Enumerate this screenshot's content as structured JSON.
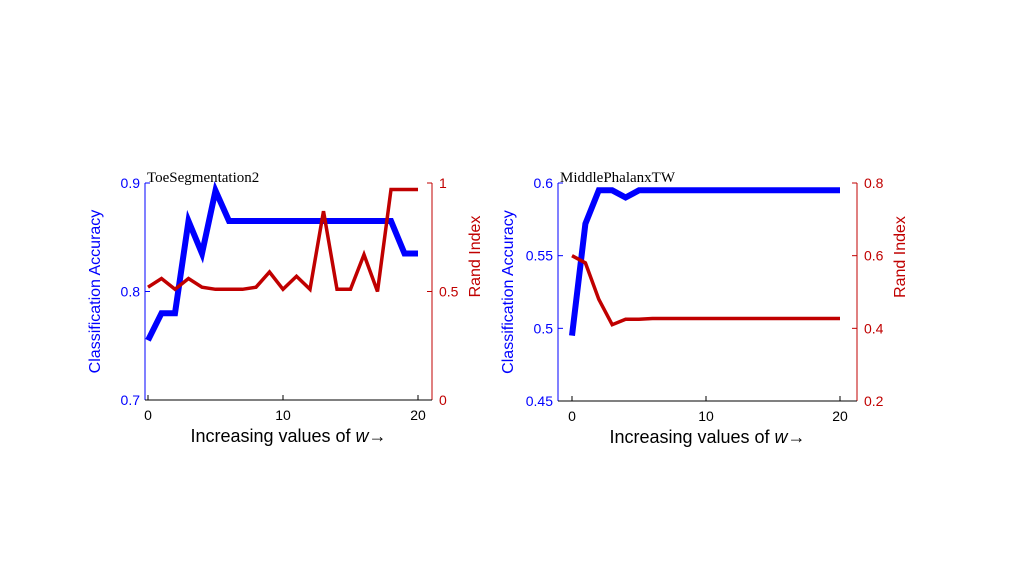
{
  "colors": {
    "left_axis": "#0000ff",
    "right_axis": "#c00000",
    "axis_line": "#000000",
    "background": "#ffffff"
  },
  "chart_data": [
    {
      "type": "line",
      "title": "ToeSegmentation2",
      "xlabel": "Increasing values of ",
      "xlabel_var": "w",
      "xlabel_arrow": "→",
      "ylabel_left": "Classification Accuracy",
      "ylabel_right": "Rand Index",
      "xlim": [
        -1,
        20
      ],
      "ylim_left": [
        0.7,
        0.9
      ],
      "ylim_right": [
        0,
        1
      ],
      "xticks": [
        0,
        10,
        20
      ],
      "xtick_labels": [
        "0",
        "10",
        "20"
      ],
      "yticks_left": [
        0.7,
        0.8,
        0.9
      ],
      "ytick_labels_left": [
        "0.7",
        "0.8",
        "0.9"
      ],
      "yticks_right": [
        0,
        0.5,
        1
      ],
      "ytick_labels_right": [
        "0",
        "0.5",
        "1"
      ],
      "grid": false,
      "series": [
        {
          "axis": "left",
          "x": [
            0,
            1,
            2,
            3,
            4,
            5,
            6,
            7,
            8,
            9,
            10,
            11,
            12,
            13,
            14,
            15,
            16,
            17,
            18,
            19,
            20
          ],
          "values": [
            0.755,
            0.78,
            0.78,
            0.865,
            0.835,
            0.893,
            0.865,
            0.865,
            0.865,
            0.865,
            0.865,
            0.865,
            0.865,
            0.865,
            0.865,
            0.865,
            0.865,
            0.865,
            0.865,
            0.835,
            0.835
          ]
        },
        {
          "axis": "right",
          "x": [
            0,
            1,
            2,
            3,
            4,
            5,
            6,
            7,
            8,
            9,
            10,
            11,
            12,
            13,
            14,
            15,
            16,
            17,
            18,
            19,
            20
          ],
          "values": [
            0.52,
            0.56,
            0.51,
            0.56,
            0.52,
            0.51,
            0.51,
            0.51,
            0.52,
            0.59,
            0.51,
            0.57,
            0.51,
            0.87,
            0.51,
            0.51,
            0.67,
            0.5,
            0.97,
            0.97,
            0.97
          ]
        }
      ]
    },
    {
      "type": "line",
      "title": "MiddlePhalanxTW",
      "xlabel": "Increasing values of ",
      "xlabel_var": "w",
      "xlabel_arrow": "→",
      "ylabel_left": "Classification Accuracy",
      "ylabel_right": "Rand Index",
      "xlim": [
        -1,
        20
      ],
      "ylim_left": [
        0.45,
        0.6
      ],
      "ylim_right": [
        0.2,
        0.8
      ],
      "xticks": [
        0,
        10,
        20
      ],
      "xtick_labels": [
        "0",
        "10",
        "20"
      ],
      "yticks_left": [
        0.45,
        0.5,
        0.55,
        0.6
      ],
      "ytick_labels_left": [
        "0.45",
        "0.5",
        "0.55",
        "0.6"
      ],
      "yticks_right": [
        0.2,
        0.4,
        0.6,
        0.8
      ],
      "ytick_labels_right": [
        "0.2",
        "0.4",
        "0.6",
        "0.8"
      ],
      "grid": false,
      "series": [
        {
          "axis": "left",
          "x": [
            0,
            1,
            2,
            3,
            4,
            5,
            6,
            7,
            8,
            9,
            10,
            11,
            12,
            13,
            14,
            15,
            16,
            17,
            18,
            19,
            20
          ],
          "values": [
            0.495,
            0.572,
            0.595,
            0.595,
            0.59,
            0.595,
            0.595,
            0.595,
            0.595,
            0.595,
            0.595,
            0.595,
            0.595,
            0.595,
            0.595,
            0.595,
            0.595,
            0.595,
            0.595,
            0.595,
            0.595
          ]
        },
        {
          "axis": "right",
          "x": [
            0,
            1,
            2,
            3,
            4,
            5,
            6,
            7,
            8,
            9,
            10,
            11,
            12,
            13,
            14,
            15,
            16,
            17,
            18,
            19,
            20
          ],
          "values": [
            0.6,
            0.58,
            0.48,
            0.41,
            0.425,
            0.425,
            0.427,
            0.427,
            0.427,
            0.427,
            0.427,
            0.427,
            0.427,
            0.427,
            0.427,
            0.427,
            0.427,
            0.427,
            0.427,
            0.427,
            0.427
          ]
        }
      ]
    }
  ]
}
